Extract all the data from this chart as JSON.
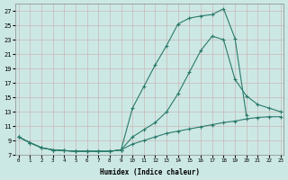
{
  "xlabel": "Humidex (Indice chaleur)",
  "bg_color": "#cce8e4",
  "grid_color": "#c8b8b8",
  "line_color": "#2a7a6a",
  "xlim": [
    -0.3,
    23.3
  ],
  "ylim": [
    7,
    28
  ],
  "yticks": [
    7,
    9,
    11,
    13,
    15,
    17,
    19,
    21,
    23,
    25,
    27
  ],
  "xticks": [
    0,
    1,
    2,
    3,
    4,
    5,
    6,
    7,
    8,
    9,
    10,
    11,
    12,
    13,
    14,
    15,
    16,
    17,
    18,
    19,
    20,
    21,
    22,
    23
  ],
  "line1_x": [
    0,
    1,
    2,
    3,
    4,
    5,
    6,
    7,
    8,
    9,
    10,
    11,
    12,
    13,
    14,
    15,
    16,
    17,
    18,
    19,
    20
  ],
  "line1_y": [
    9.5,
    8.7,
    8.0,
    7.7,
    7.6,
    7.5,
    7.5,
    7.5,
    7.5,
    7.7,
    13.5,
    16.5,
    19.5,
    22.2,
    25.2,
    26.0,
    26.3,
    26.5,
    27.3,
    23.2,
    12.5
  ],
  "line2_x": [
    0,
    1,
    2,
    3,
    4,
    5,
    6,
    7,
    8,
    9,
    10,
    11,
    12,
    13,
    14,
    15,
    16,
    17,
    18,
    19,
    20,
    21,
    22,
    23
  ],
  "line2_y": [
    9.5,
    8.7,
    8.0,
    7.7,
    7.6,
    7.5,
    7.5,
    7.5,
    7.5,
    7.7,
    9.5,
    10.5,
    11.5,
    13.0,
    15.5,
    18.5,
    21.5,
    23.5,
    23.0,
    17.5,
    15.2,
    14.0,
    13.5,
    13.0
  ],
  "line3_x": [
    0,
    1,
    2,
    3,
    4,
    5,
    6,
    7,
    8,
    9,
    10,
    11,
    12,
    13,
    14,
    15,
    16,
    17,
    18,
    19,
    20,
    21,
    22,
    23
  ],
  "line3_y": [
    9.5,
    8.7,
    8.0,
    7.7,
    7.6,
    7.5,
    7.5,
    7.5,
    7.5,
    7.7,
    8.5,
    9.0,
    9.5,
    10.0,
    10.3,
    10.6,
    10.9,
    11.2,
    11.5,
    11.7,
    12.0,
    12.2,
    12.3,
    12.3
  ]
}
